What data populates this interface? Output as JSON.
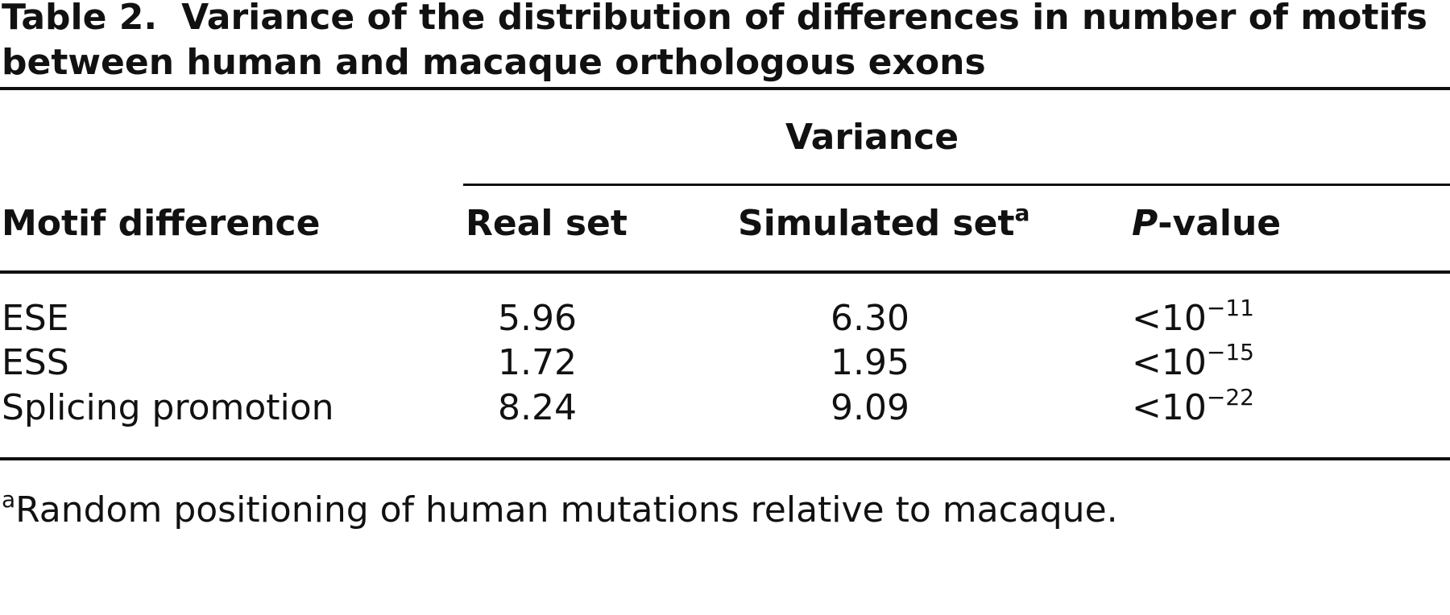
{
  "table": {
    "label": "Table 2.",
    "title": "Variance of the distribution of differences in number of motifs between human and macaque orthologous exons",
    "group_header": "Variance",
    "columns": [
      "Motif difference",
      "Real set",
      {
        "text": "Simulated set",
        "note": "a"
      },
      {
        "italic": "P",
        "text": "-value"
      }
    ],
    "rows": [
      [
        "ESE",
        "5.96",
        "6.30",
        {
          "base": "<10",
          "exp": "−11"
        }
      ],
      [
        "ESS",
        "1.72",
        "1.95",
        {
          "base": "<10",
          "exp": "−15"
        }
      ],
      [
        "Splicing promotion",
        "8.24",
        "9.09",
        {
          "base": "<10",
          "exp": "−22"
        }
      ]
    ],
    "footnote": {
      "mark": "a",
      "text": "Random positioning of human mutations relative to macaque."
    }
  }
}
